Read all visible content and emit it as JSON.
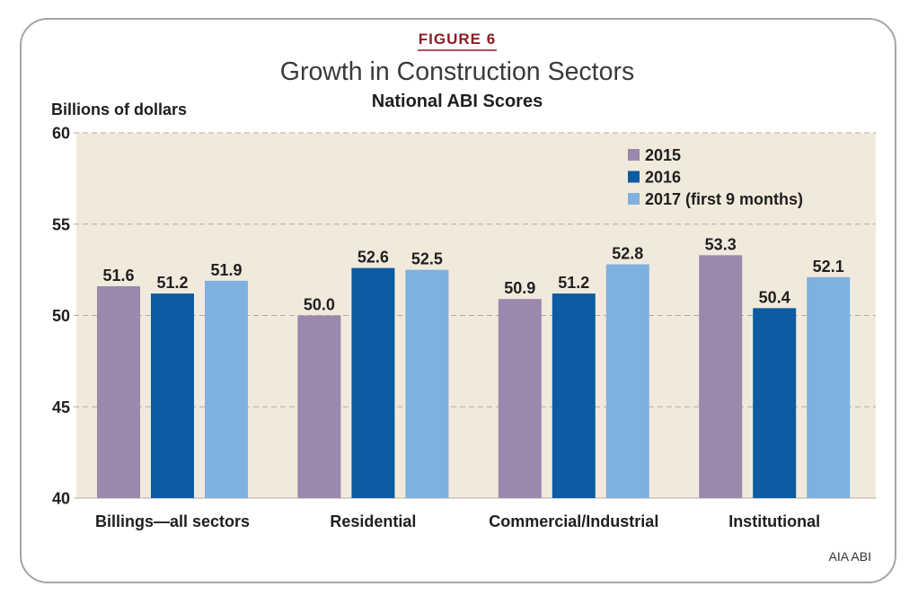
{
  "figure": {
    "label": "FIGURE 6",
    "source": "AIA ABI"
  },
  "chart_data": {
    "type": "bar",
    "title": "Growth in Construction Sectors",
    "subtitle": "National ABI Scores",
    "xlabel": "",
    "ylabel": "Billions of dollars",
    "ylim": [
      40,
      60
    ],
    "yticks": [
      40,
      45,
      50,
      55,
      60
    ],
    "grid": true,
    "legend_position": "top-right",
    "categories": [
      "Billings—all sectors",
      "Residential",
      "Commercial/Industrial",
      "Institutional"
    ],
    "series": [
      {
        "name": "2015",
        "color": "#9B88AD",
        "values": [
          51.6,
          50.0,
          50.9,
          53.3
        ],
        "labels": [
          "51.6",
          "50.0",
          "50.9",
          "53.3"
        ]
      },
      {
        "name": "2016",
        "color": "#0D5BA0",
        "values": [
          51.2,
          52.6,
          51.2,
          50.4
        ],
        "labels": [
          "51.2",
          "52.6",
          "51.2",
          "50.4"
        ]
      },
      {
        "name": "2017 (first 9 months)",
        "color": "#7FB1DF",
        "values": [
          51.9,
          52.5,
          52.8,
          52.1
        ],
        "labels": [
          "51.9",
          "52.5",
          "52.8",
          "52.1"
        ]
      }
    ],
    "colors": {
      "plot_background": "#F1EADC",
      "gridline": "#B3ACA0",
      "figure_label": "#8C1D24"
    }
  }
}
